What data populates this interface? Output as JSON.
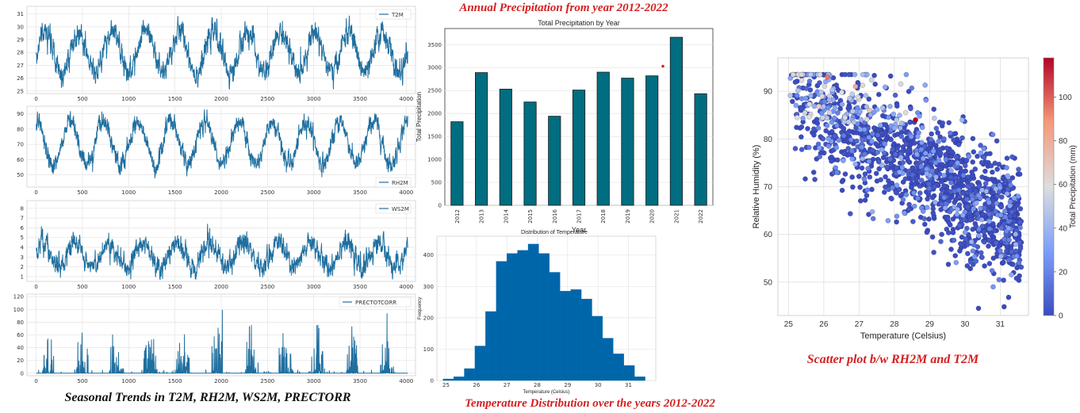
{
  "captions": {
    "bar_title": "Annual Precipitation from year 2012-2022",
    "hist_title": "Temperature Distribution over the years 2012-2022",
    "scatter_title": "Scatter plot b/w RH2M and T2M",
    "ts_title": "Seasonal Trends in T2M, RH2M, WS2M, PRECTORR"
  },
  "colors": {
    "series": "#1f6f9f",
    "bar": "#006d80",
    "hist": "#0066aa",
    "caption": "#d42020"
  },
  "chart_data": [
    {
      "type": "line",
      "title": "",
      "legend": "T2M",
      "legend_position": "top-right",
      "x_ticks": [
        0,
        500,
        1000,
        1500,
        2000,
        2500,
        3000,
        3500,
        4000
      ],
      "y_ticks": [
        25,
        26,
        27,
        28,
        29,
        30,
        31
      ],
      "xlim": [
        -100,
        4100
      ],
      "ylim": [
        24.8,
        31.6
      ],
      "cycle": 365,
      "mean": 28,
      "amplitude": 1.6,
      "noise": 0.9
    },
    {
      "type": "line",
      "title": "",
      "legend": "RH2M",
      "legend_position": "bottom-right",
      "x_ticks": [
        0,
        500,
        1000,
        1500,
        2000,
        2500,
        3000,
        3500,
        4000
      ],
      "y_ticks": [
        50,
        60,
        70,
        80,
        90
      ],
      "xlim": [
        -100,
        4100
      ],
      "ylim": [
        42,
        95
      ],
      "cycle": 365,
      "mean": 71,
      "amplitude": 14,
      "noise": 6
    },
    {
      "type": "line",
      "title": "",
      "legend": "WS2M",
      "legend_position": "top-right",
      "x_ticks": [
        0,
        500,
        1000,
        1500,
        2000,
        2500,
        3000,
        3500,
        4000
      ],
      "y_ticks": [
        1,
        2,
        3,
        4,
        5,
        6,
        7,
        8
      ],
      "xlim": [
        -100,
        4100
      ],
      "ylim": [
        0.5,
        8.8
      ],
      "cycle": 365,
      "mean": 3.2,
      "amplitude": 1.3,
      "noise": 1.1
    },
    {
      "type": "line",
      "title": "",
      "legend": "PRECTOTCORR",
      "legend_position": "top-right",
      "x_ticks": [
        0,
        500,
        1000,
        1500,
        2000,
        2500,
        3000,
        3500,
        4000
      ],
      "y_ticks": [
        0,
        20,
        40,
        60,
        80,
        100,
        120
      ],
      "xlim": [
        -100,
        4100
      ],
      "ylim": [
        -4,
        124
      ],
      "cycle": 365,
      "mean": 3,
      "amplitude": 3,
      "noise": 0
    },
    {
      "type": "bar",
      "title": "Total Precipitation by Year",
      "categories": [
        "2012",
        "2013",
        "2014",
        "2015",
        "2016",
        "2017",
        "2018",
        "2019",
        "2020",
        "2021",
        "2022"
      ],
      "values": [
        1820,
        2890,
        2530,
        2250,
        1940,
        2510,
        2900,
        2770,
        2820,
        3660,
        2430
      ],
      "xlabel": "Year",
      "ylabel": "Total Precipitation",
      "y_ticks": [
        0,
        500,
        1000,
        1500,
        2000,
        2500,
        3000,
        3500
      ],
      "ylim": [
        0,
        3850
      ]
    },
    {
      "type": "bar",
      "title": "Distribution of Temperature",
      "xlabel": "Temperature (Celsius)",
      "ylabel": "Frequency",
      "bin_start": 24.9,
      "bin_width": 0.35,
      "values": [
        5,
        12,
        38,
        110,
        220,
        380,
        405,
        415,
        435,
        405,
        345,
        285,
        290,
        260,
        205,
        135,
        85,
        48,
        12
      ],
      "x_ticks": [
        25,
        26,
        27,
        28,
        29,
        30,
        31
      ],
      "y_ticks": [
        0,
        100,
        200,
        300,
        400
      ],
      "xlim": [
        24.7,
        31.9
      ],
      "ylim": [
        0,
        460
      ]
    },
    {
      "type": "scatter",
      "title": "",
      "xlabel": "Temperature (Celsius)",
      "ylabel": "Relative Humidity (%)",
      "colorbar_label": "Total Precipitation (mm)",
      "x_ticks": [
        25,
        26,
        27,
        28,
        29,
        30,
        31
      ],
      "y_ticks": [
        50,
        60,
        70,
        80,
        90
      ],
      "colorbar_ticks": [
        0,
        20,
        40,
        60,
        80,
        100
      ],
      "xlim": [
        24.7,
        31.8
      ],
      "ylim": [
        43,
        97
      ],
      "clim": [
        0,
        118
      ]
    }
  ]
}
